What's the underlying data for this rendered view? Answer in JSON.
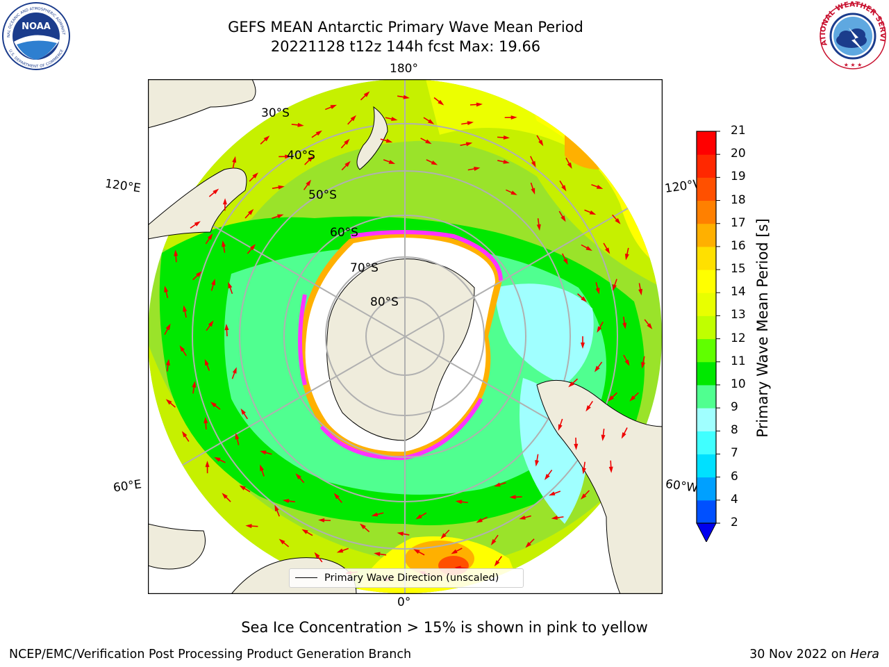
{
  "title": {
    "line1": "GEFS MEAN Antarctic Primary Wave Mean Period",
    "line2": "20221128 t12z 144h fcst   Max: 19.66"
  },
  "logos": {
    "left": {
      "text": "NOAA",
      "ring_top": "NATIONAL OCEANIC AND ATMOSPHERIC ADMINISTRATION",
      "ring_bottom": "U.S. DEPARTMENT OF COMMERCE"
    },
    "right": {
      "text": "NATIONAL WEATHER SERVICE"
    }
  },
  "map": {
    "projection": "south polar stereographic",
    "latitude_labels": [
      "30°S",
      "40°S",
      "50°S",
      "60°S",
      "70°S",
      "80°S"
    ],
    "longitude_labels": {
      "top": "180°",
      "bottom": "0°",
      "upper_left": "120°E",
      "upper_right": "120°W",
      "lower_left": "60°E",
      "lower_right": "60°W"
    },
    "colors": {
      "land": "#efecdc",
      "ice": "#ffffff",
      "ice_edge": "#ff33ff",
      "grid": "#b0b0b0",
      "arrow": "#ee0000"
    },
    "legend": "Primary Wave Direction (unscaled)"
  },
  "colorbar": {
    "label": "Primary Wave Mean Period [s]",
    "ticks": [
      "2",
      "4",
      "6",
      "7",
      "8",
      "9",
      "10",
      "11",
      "12",
      "13",
      "14",
      "15",
      "16",
      "17",
      "18",
      "19",
      "20",
      "21"
    ],
    "colors": [
      "#0050ff",
      "#00a0ff",
      "#00e0ff",
      "#40ffff",
      "#a0ffff",
      "#50ff90",
      "#00e800",
      "#60ff00",
      "#c0ff00",
      "#e8ff00",
      "#ffff00",
      "#ffe000",
      "#ffb000",
      "#ff8000",
      "#ff5000",
      "#ff2800",
      "#ff0000"
    ],
    "under_color": "#0000ee"
  },
  "subtitle": "Sea Ice Concentration > 15% is shown in pink to yellow",
  "footer": {
    "left": "NCEP/EMC/Verification Post Processing Product Generation Branch",
    "date": "30 Nov 2022 on",
    "machine": "Hera"
  }
}
